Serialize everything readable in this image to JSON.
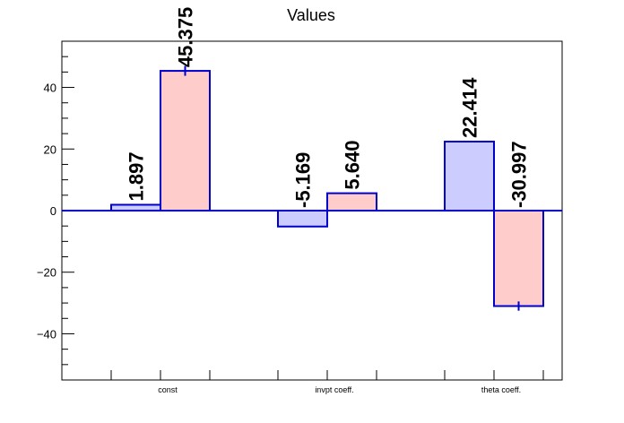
{
  "chart_data": {
    "type": "bar",
    "title": "Values",
    "xlabel": "",
    "ylabel": "",
    "categories": [
      "const",
      "invpt coeff.",
      "theta coeff."
    ],
    "ylim": [
      -55,
      55
    ],
    "yticks": [
      -40,
      -20,
      0,
      20,
      40
    ],
    "grid": false,
    "series": [
      {
        "values": [
          1.897,
          -5.169,
          22.414
        ],
        "labels": [
          "1.897",
          "-5.169",
          "22.414"
        ],
        "errors": [
          0,
          0,
          0
        ],
        "fill": "#ccccff",
        "stroke": "#0000cc"
      },
      {
        "values": [
          45.375,
          5.64,
          -30.997
        ],
        "labels": [
          "45.375",
          "5.640",
          "-30.997"
        ],
        "errors": [
          1.6,
          0,
          1.5
        ],
        "fill": "#ffcccc",
        "stroke": "#0000cc"
      }
    ]
  }
}
